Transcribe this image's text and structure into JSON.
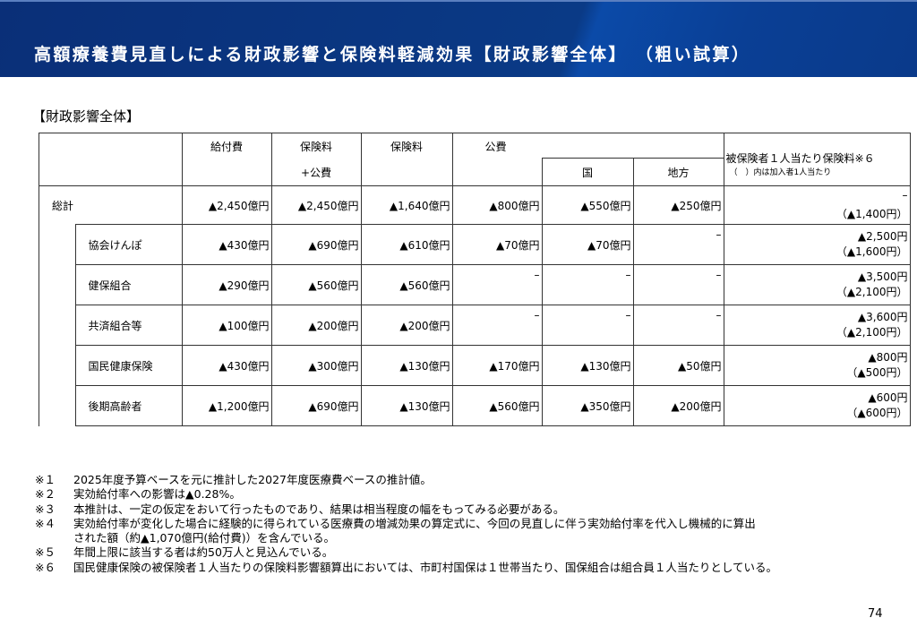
{
  "title": "高額療養費見直しによる財政影響と保険料軽減効果【財政影響全体】 （粗い試算）",
  "section": "【財政影響全体】",
  "table": {
    "headers": {
      "kyufu": "給付費",
      "hokenryo_kohi_1": "保険料",
      "hokenryo_kohi_2": "+公費",
      "hokenryo": "保険料",
      "kohi": "公費",
      "kuni": "国",
      "chiho": "地方",
      "per_person": "被保険者１人当たり保険料※６",
      "per_person_note": "（　）内は加入者1人当たり"
    },
    "total": {
      "label": "総計",
      "kyufu": "▲2,450億円",
      "hokenryo_kohi": "▲2,450億円",
      "hokenryo": "▲1,640億円",
      "kohi": "▲800億円",
      "kuni": "▲550億円",
      "chiho": "▲250億円",
      "per_insured": "–",
      "per_member": "（▲1,400円）"
    },
    "rows": [
      {
        "label": "協会けんぽ",
        "kyufu": "▲430億円",
        "hokenryo_kohi": "▲690億円",
        "hokenryo": "▲610億円",
        "kohi": "▲70億円",
        "kuni": "▲70億円",
        "chiho": "–",
        "per_insured": "▲2,500円",
        "per_member": "（▲1,600円）"
      },
      {
        "label": "健保組合",
        "kyufu": "▲290億円",
        "hokenryo_kohi": "▲560億円",
        "hokenryo": "▲560億円",
        "kohi": "–",
        "kuni": "–",
        "chiho": "–",
        "per_insured": "▲3,500円",
        "per_member": "（▲2,100円）"
      },
      {
        "label": "共済組合等",
        "kyufu": "▲100億円",
        "hokenryo_kohi": "▲200億円",
        "hokenryo": "▲200億円",
        "kohi": "–",
        "kuni": "–",
        "chiho": "–",
        "per_insured": "▲3,600円",
        "per_member": "（▲2,100円）"
      },
      {
        "label": "国民健康保険",
        "kyufu": "▲430億円",
        "hokenryo_kohi": "▲300億円",
        "hokenryo": "▲130億円",
        "kohi": "▲170億円",
        "kuni": "▲130億円",
        "chiho": "▲50億円",
        "per_insured": "▲800円",
        "per_member": "（▲500円）"
      },
      {
        "label": "後期高齢者",
        "kyufu": "▲1,200億円",
        "hokenryo_kohi": "▲690億円",
        "hokenryo": "▲130億円",
        "kohi": "▲560億円",
        "kuni": "▲350億円",
        "chiho": "▲200億円",
        "per_insured": "▲600円",
        "per_member": "（▲600円）"
      }
    ]
  },
  "notes": [
    {
      "key": "※１",
      "text": "2025年度予算ベースを元に推計した2027年度医療費ベースの推計値。"
    },
    {
      "key": "※２",
      "text": "実効給付率への影響は▲0.28%。"
    },
    {
      "key": "※３",
      "text": "本推計は、一定の仮定をおいて行ったものであり、結果は相当程度の幅をもってみる必要がある。"
    },
    {
      "key": "※４",
      "text": "実効給付率が変化した場合に経験的に得られている医療費の増減効果の算定式に、今回の見直しに伴う実効給付率を代入し機械的に算出",
      "text2": "された額（約▲1,070億円(給付費)）を含んでいる。"
    },
    {
      "key": "※５",
      "text": "年間上限に該当する者は約50万人と見込んでいる。"
    },
    {
      "key": "※６",
      "text": "国民健康保険の被保険者１人当たりの保険料影響額算出においては、市町村国保は１世帯当たり、国保組合は組合員１人当たりとしている。"
    }
  ],
  "page_number": "74"
}
